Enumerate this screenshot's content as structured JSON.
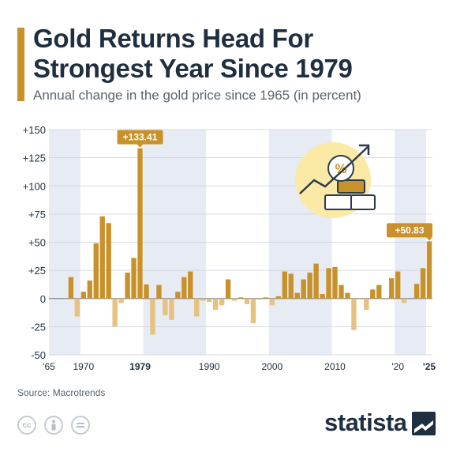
{
  "header": {
    "title": "Gold Returns Head For Strongest Year Since 1979",
    "subtitle": "Annual change in the gold price since 1965 (in percent)"
  },
  "footer": {
    "source": "Source: Macrotrends",
    "brand": "statista",
    "license_icons": [
      "cc-icon",
      "attribution-icon",
      "no-derivatives-icon"
    ]
  },
  "colors": {
    "accent": "#c8912a",
    "positive_bar": "#c8912a",
    "negative_bar": "#e6c17f",
    "band": "#e7ecf4",
    "text": "#1f2f3f"
  },
  "chart_data": {
    "type": "bar",
    "title": "Gold Returns Head For Strongest Year Since 1979",
    "subtitle": "Annual change in the gold price since 1965 (in percent)",
    "xlabel": "",
    "ylabel": "",
    "ylim": [
      -50,
      150
    ],
    "y_ticks": [
      "+150",
      "+125",
      "+100",
      "+75",
      "+50",
      "+25",
      "0",
      "-25",
      "-50"
    ],
    "x_ticks": [
      {
        "year": 1965,
        "label": "'65",
        "bold": false
      },
      {
        "year": 1970,
        "label": "1970",
        "bold": false
      },
      {
        "year": 1979,
        "label": "1979",
        "bold": true
      },
      {
        "year": 1990,
        "label": "1990",
        "bold": false
      },
      {
        "year": 2000,
        "label": "2000",
        "bold": false
      },
      {
        "year": 2010,
        "label": "2010",
        "bold": false
      },
      {
        "year": 2020,
        "label": "'20",
        "bold": false
      },
      {
        "year": 2025,
        "label": "'25",
        "bold": true
      }
    ],
    "shaded_periods": [
      [
        1965,
        1970
      ],
      [
        1980,
        1990
      ],
      [
        2000,
        2010
      ],
      [
        2020,
        2025
      ]
    ],
    "grid": true,
    "callouts": [
      {
        "year": 1979,
        "label": "+133.41"
      },
      {
        "year": 2025,
        "label": "+50.83"
      }
    ],
    "years": [
      1965,
      1966,
      1967,
      1968,
      1969,
      1970,
      1971,
      1972,
      1973,
      1974,
      1975,
      1976,
      1977,
      1978,
      1979,
      1980,
      1981,
      1982,
      1983,
      1984,
      1985,
      1986,
      1987,
      1988,
      1989,
      1990,
      1991,
      1992,
      1993,
      1994,
      1995,
      1996,
      1997,
      1998,
      1999,
      2000,
      2001,
      2002,
      2003,
      2004,
      2005,
      2006,
      2007,
      2008,
      2009,
      2010,
      2011,
      2012,
      2013,
      2014,
      2015,
      2016,
      2017,
      2018,
      2019,
      2020,
      2021,
      2022,
      2023,
      2024,
      2025
    ],
    "values": [
      0,
      0,
      0,
      19,
      -16,
      6,
      16,
      49,
      73,
      67,
      -25,
      -4,
      23,
      36,
      133.41,
      12.5,
      -32,
      12,
      -15,
      -19,
      6,
      19,
      24,
      -16,
      -2,
      -3,
      -10,
      -6,
      17,
      -2,
      1,
      -5,
      -22,
      -1,
      1,
      -6,
      2,
      24,
      22,
      5,
      17,
      23,
      31,
      4,
      27,
      28,
      12,
      5,
      -28,
      -1,
      -10,
      8,
      12,
      -1,
      18,
      24,
      -4,
      0,
      13,
      27,
      50.83
    ]
  }
}
